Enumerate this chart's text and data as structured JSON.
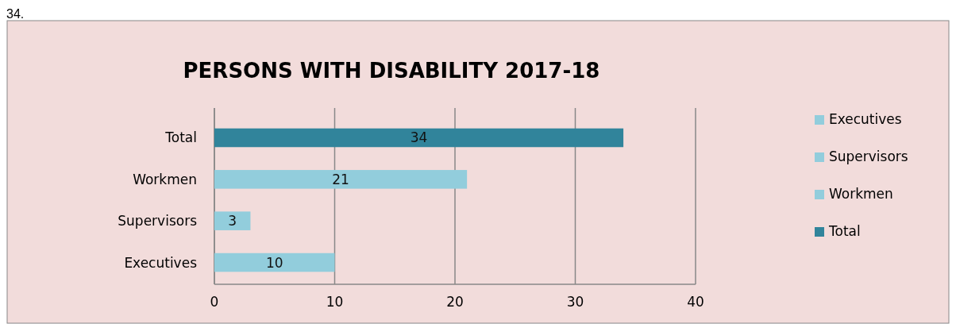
{
  "chart_data": {
    "type": "bar",
    "orientation": "horizontal",
    "stacked": true,
    "title": "PERSONS WITH DISABILITY 2017-18",
    "annotations": [
      "34."
    ],
    "categories": [
      "Total",
      "Workmen",
      "Supervisors",
      "Executives"
    ],
    "series": [
      {
        "name": "Executives",
        "color": "#92cddc",
        "values": [
          null,
          null,
          null,
          10
        ]
      },
      {
        "name": "Supervisors",
        "color": "#92cddc",
        "values": [
          null,
          null,
          3,
          null
        ]
      },
      {
        "name": "Workmen",
        "color": "#92cddc",
        "values": [
          null,
          21,
          null,
          null
        ]
      },
      {
        "name": "Total",
        "color": "#31849b",
        "values": [
          34,
          null,
          null,
          null
        ]
      }
    ],
    "xlim": [
      0,
      40
    ],
    "xticks": [
      0,
      10,
      20,
      30,
      40
    ],
    "grid": "x",
    "data_labels": true,
    "legend": "right"
  }
}
